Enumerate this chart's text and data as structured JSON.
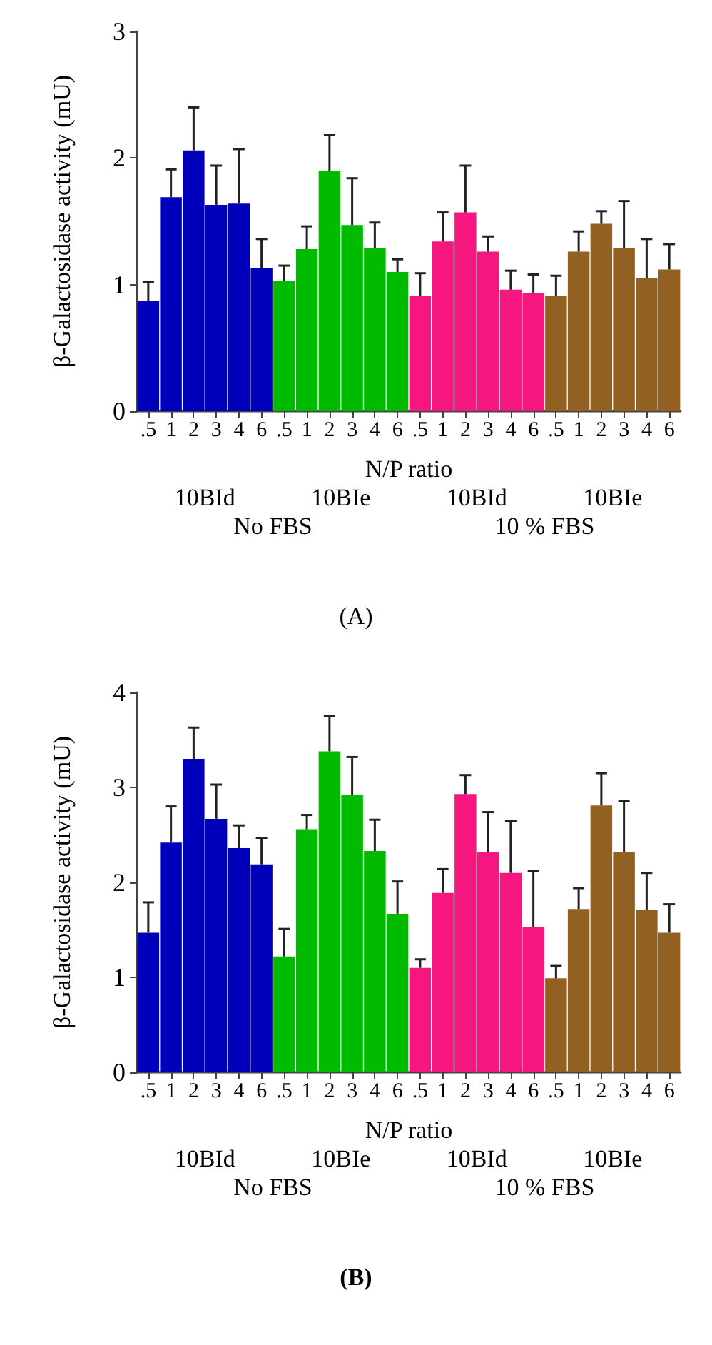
{
  "chart_data": [
    {
      "type": "bar",
      "title": "(A)",
      "ylabel": "β-Galactosidase activity (mU)",
      "xlabel": "N/P ratio",
      "categories": [
        ".5",
        "1",
        "2",
        "3",
        "4",
        "6",
        ".5",
        "1",
        "2",
        "3",
        "4",
        "6",
        ".5",
        "1",
        "2",
        "3",
        "4",
        "6",
        ".5",
        "1",
        "2",
        "3",
        "4",
        "6"
      ],
      "annotations": [
        "10BId",
        "10BIe",
        "10BId",
        "10BIe",
        "No FBS",
        "10 % FBS"
      ],
      "ylim": [
        0,
        3
      ],
      "yticks": [
        0,
        1,
        2,
        3
      ],
      "series": [
        {
          "color": "#0000bb",
          "values": [
            0.87,
            1.69,
            2.06,
            1.63,
            1.64,
            1.13,
            null,
            null,
            null,
            null,
            null,
            null,
            null,
            null,
            null,
            null,
            null,
            null,
            null,
            null,
            null,
            null,
            null,
            null
          ],
          "errors": [
            [
              0.87,
              1.02
            ],
            [
              1.69,
              1.91
            ],
            [
              2.06,
              2.4
            ],
            [
              1.63,
              1.94
            ],
            [
              1.64,
              2.07
            ],
            [
              1.13,
              1.36
            ],
            null,
            null,
            null,
            null,
            null,
            null,
            null,
            null,
            null,
            null,
            null,
            null,
            null,
            null,
            null,
            null,
            null,
            null
          ]
        },
        {
          "color": "#00bb00",
          "values": [
            null,
            null,
            null,
            null,
            null,
            null,
            1.03,
            1.28,
            1.9,
            1.47,
            1.29,
            1.1,
            null,
            null,
            null,
            null,
            null,
            null,
            null,
            null,
            null,
            null,
            null,
            null
          ],
          "errors": [
            null,
            null,
            null,
            null,
            null,
            null,
            [
              1.03,
              1.15
            ],
            [
              1.28,
              1.46
            ],
            [
              1.9,
              2.18
            ],
            [
              1.47,
              1.84
            ],
            [
              1.29,
              1.49
            ],
            [
              1.1,
              1.2
            ],
            null,
            null,
            null,
            null,
            null,
            null,
            null,
            null,
            null,
            null,
            null,
            null
          ]
        },
        {
          "color": "#f5177f",
          "values": [
            null,
            null,
            null,
            null,
            null,
            null,
            null,
            null,
            null,
            null,
            null,
            null,
            0.91,
            1.34,
            1.57,
            1.26,
            0.96,
            0.93,
            null,
            null,
            null,
            null,
            null,
            null
          ],
          "errors": [
            null,
            null,
            null,
            null,
            null,
            null,
            null,
            null,
            null,
            null,
            null,
            null,
            [
              0.91,
              1.09
            ],
            [
              1.34,
              1.57
            ],
            [
              1.57,
              1.94
            ],
            [
              1.26,
              1.38
            ],
            [
              0.96,
              1.11
            ],
            [
              0.93,
              1.08
            ],
            null,
            null,
            null,
            null,
            null,
            null
          ]
        },
        {
          "color": "#926020",
          "values": [
            null,
            null,
            null,
            null,
            null,
            null,
            null,
            null,
            null,
            null,
            null,
            null,
            null,
            null,
            null,
            null,
            null,
            null,
            0.91,
            1.26,
            1.48,
            1.29,
            1.05,
            1.12
          ],
          "errors": [
            null,
            null,
            null,
            null,
            null,
            null,
            null,
            null,
            null,
            null,
            null,
            null,
            null,
            null,
            null,
            null,
            null,
            null,
            [
              0.91,
              1.07
            ],
            [
              1.26,
              1.42
            ],
            [
              1.48,
              1.58
            ],
            [
              1.29,
              1.66
            ],
            [
              1.05,
              1.36
            ],
            [
              1.12,
              1.32
            ]
          ]
        }
      ]
    },
    {
      "type": "bar",
      "title": "(B)",
      "ylabel": "β-Galactosidase activity (mU)",
      "xlabel": "N/P ratio",
      "categories": [
        ".5",
        "1",
        "2",
        "3",
        "4",
        "6",
        ".5",
        "1",
        "2",
        "3",
        "4",
        "6",
        ".5",
        "1",
        "2",
        "3",
        "4",
        "6",
        ".5",
        "1",
        "2",
        "3",
        "4",
        "6"
      ],
      "annotations": [
        "10BId",
        "10BIe",
        "10BId",
        "10BIe",
        "No FBS",
        "10 % FBS"
      ],
      "ylim": [
        0,
        4
      ],
      "yticks": [
        0,
        1,
        2,
        3,
        4
      ],
      "series": [
        {
          "color": "#0000bb",
          "values": [
            1.47,
            2.42,
            3.3,
            2.67,
            2.36,
            2.19,
            null,
            null,
            null,
            null,
            null,
            null,
            null,
            null,
            null,
            null,
            null,
            null,
            null,
            null,
            null,
            null,
            null,
            null
          ],
          "errors": [
            [
              1.47,
              1.79
            ],
            [
              2.42,
              2.8
            ],
            [
              3.3,
              3.63
            ],
            [
              2.67,
              3.03
            ],
            [
              2.36,
              2.6
            ],
            [
              2.19,
              2.47
            ],
            null,
            null,
            null,
            null,
            null,
            null,
            null,
            null,
            null,
            null,
            null,
            null,
            null,
            null,
            null,
            null,
            null,
            null
          ]
        },
        {
          "color": "#00bb00",
          "values": [
            null,
            null,
            null,
            null,
            null,
            null,
            1.22,
            2.56,
            3.38,
            2.92,
            2.33,
            1.67,
            null,
            null,
            null,
            null,
            null,
            null,
            null,
            null,
            null,
            null,
            null,
            null
          ],
          "errors": [
            null,
            null,
            null,
            null,
            null,
            null,
            [
              1.22,
              1.51
            ],
            [
              2.56,
              2.71
            ],
            [
              3.38,
              3.75
            ],
            [
              2.92,
              3.32
            ],
            [
              2.33,
              2.66
            ],
            [
              1.67,
              2.01
            ],
            null,
            null,
            null,
            null,
            null,
            null,
            null,
            null,
            null,
            null,
            null,
            null
          ]
        },
        {
          "color": "#f5177f",
          "values": [
            null,
            null,
            null,
            null,
            null,
            null,
            null,
            null,
            null,
            null,
            null,
            null,
            1.1,
            1.89,
            2.93,
            2.32,
            2.1,
            1.53,
            null,
            null,
            null,
            null,
            null,
            null
          ],
          "errors": [
            null,
            null,
            null,
            null,
            null,
            null,
            null,
            null,
            null,
            null,
            null,
            null,
            [
              1.1,
              1.19
            ],
            [
              1.89,
              2.14
            ],
            [
              2.93,
              3.13
            ],
            [
              2.32,
              2.74
            ],
            [
              2.1,
              2.65
            ],
            [
              1.53,
              2.12
            ],
            null,
            null,
            null,
            null,
            null,
            null
          ]
        },
        {
          "color": "#926020",
          "values": [
            null,
            null,
            null,
            null,
            null,
            null,
            null,
            null,
            null,
            null,
            null,
            null,
            null,
            null,
            null,
            null,
            null,
            null,
            0.99,
            1.72,
            2.81,
            2.32,
            1.71,
            1.47
          ],
          "errors": [
            null,
            null,
            null,
            null,
            null,
            null,
            null,
            null,
            null,
            null,
            null,
            null,
            null,
            null,
            null,
            null,
            null,
            null,
            [
              0.99,
              1.12
            ],
            [
              1.72,
              1.94
            ],
            [
              2.81,
              3.15
            ],
            [
              2.32,
              2.86
            ],
            [
              1.71,
              2.1
            ],
            [
              1.47,
              1.77
            ]
          ]
        }
      ]
    }
  ]
}
